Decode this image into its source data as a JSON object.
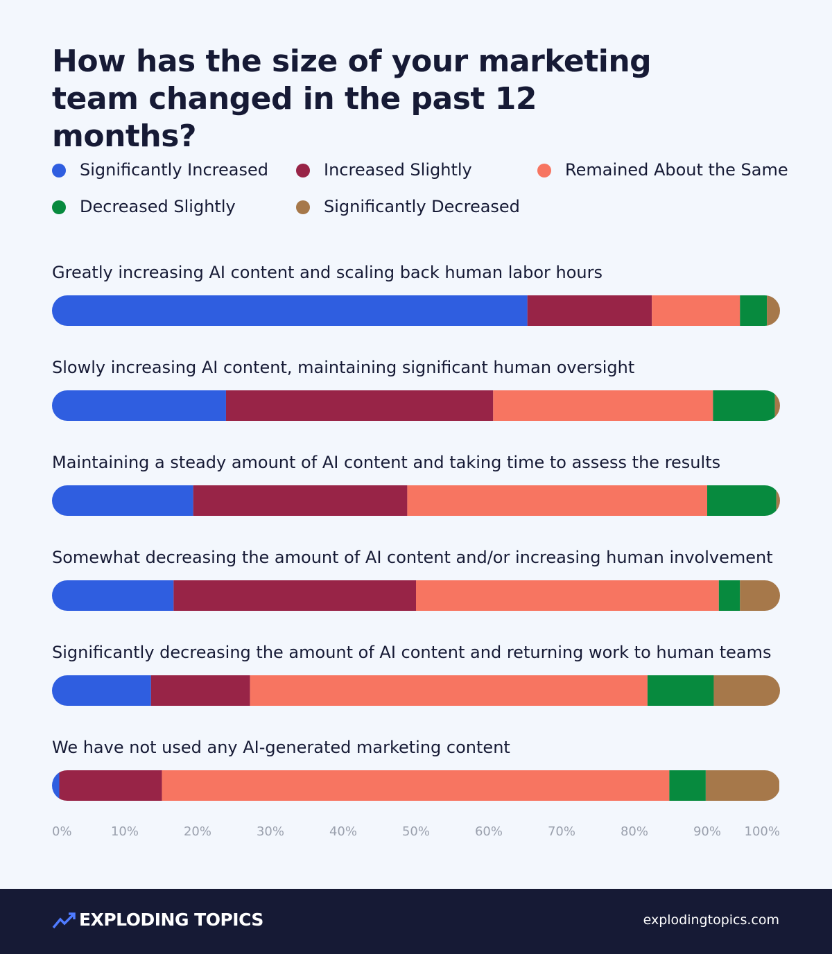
{
  "chart_data": {
    "type": "stacked-bar-horizontal",
    "title": "How has the size of your marketing team changed in the past 12 months?",
    "categories": [
      "Greatly increasing AI content and scaling back human labor hours",
      "Slowly increasing AI content, maintaining significant human oversight",
      "Maintaining a steady amount of AI content and taking time to assess the results",
      "Somewhat decreasing the amount of AI content and/or increasing human involvement",
      "Significantly decreasing the amount of AI content and returning work to human teams",
      "We have not used any AI-generated marketing content"
    ],
    "series": [
      {
        "name": "Significantly Increased",
        "color": "#2f5ee0",
        "values": [
          65.3,
          23.9,
          19.4,
          16.7,
          13.6,
          1.0
        ]
      },
      {
        "name": "Increased Slightly",
        "color": "#982447",
        "values": [
          17.1,
          36.7,
          29.4,
          33.3,
          13.6,
          14.1
        ]
      },
      {
        "name": "Remained About the Same",
        "color": "#f77561",
        "values": [
          12.1,
          30.2,
          41.2,
          41.6,
          54.6,
          69.7
        ]
      },
      {
        "name": "Decreased Slightly",
        "color": "#078a3e",
        "values": [
          3.7,
          8.5,
          9.5,
          2.9,
          9.1,
          5.0
        ]
      },
      {
        "name": "Significantly Decreased",
        "color": "#a6784a",
        "values": [
          1.8,
          0.7,
          0.5,
          5.5,
          9.1,
          10.1
        ]
      }
    ],
    "xlim": [
      0,
      100
    ],
    "xticks": [
      {
        "value": 0,
        "label": "0%"
      },
      {
        "value": 10,
        "label": "10%"
      },
      {
        "value": 20,
        "label": "20%"
      },
      {
        "value": 30,
        "label": "30%"
      },
      {
        "value": 40,
        "label": "40%"
      },
      {
        "value": 50,
        "label": "50%"
      },
      {
        "value": 60,
        "label": "60%"
      },
      {
        "value": 70,
        "label": "70%"
      },
      {
        "value": 80,
        "label": "80%"
      },
      {
        "value": 90,
        "label": "90%"
      },
      {
        "value": 100,
        "label": "100%"
      }
    ],
    "legend": "top",
    "grid": false
  },
  "footer": {
    "brand": "EXPLODING TOPICS",
    "url": "explodingtopics.com"
  }
}
